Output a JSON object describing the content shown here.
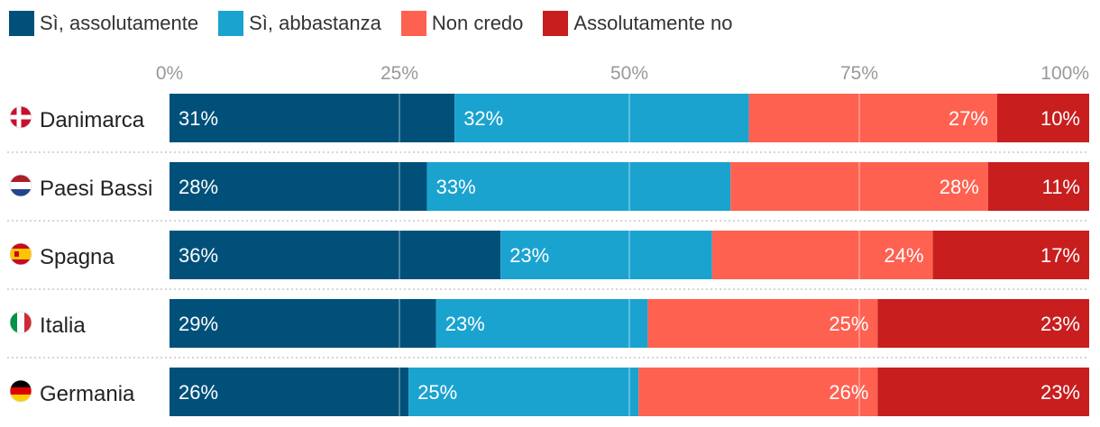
{
  "chart_data": {
    "type": "bar",
    "orientation": "horizontal",
    "stacked": true,
    "categories": [
      "Danimarca",
      "Paesi Bassi",
      "Spagna",
      "Italia",
      "Germania"
    ],
    "series": [
      {
        "name": "Sì, assolutamente",
        "values": [
          31,
          28,
          36,
          29,
          26
        ],
        "labels": [
          "31%",
          "28%",
          "36%",
          "29%",
          "26%"
        ],
        "color": "#00507a"
      },
      {
        "name": "Sì, abbastanza",
        "values": [
          32,
          33,
          23,
          23,
          25
        ],
        "labels": [
          "32%",
          "33%",
          "23%",
          "23%",
          "25%"
        ],
        "color": "#1ba3d0"
      },
      {
        "name": "Non credo",
        "values": [
          27,
          28,
          24,
          25,
          26
        ],
        "labels": [
          "27%",
          "28%",
          "24%",
          "25%",
          "26%"
        ],
        "color": "#ff6150"
      },
      {
        "name": "Assolutamente no",
        "values": [
          10,
          11,
          17,
          23,
          23
        ],
        "labels": [
          "10%",
          "11%",
          "17%",
          "23%",
          "23%"
        ],
        "color": "#c81e1e"
      }
    ],
    "xlim": [
      0,
      100
    ],
    "x_ticks": [
      "0%",
      "25%",
      "50%",
      "75%",
      "100%"
    ],
    "legend_position": "top-left",
    "flags": [
      "denmark-flag-icon",
      "netherlands-flag-icon",
      "spain-flag-icon",
      "italy-flag-icon",
      "germany-flag-icon"
    ]
  }
}
